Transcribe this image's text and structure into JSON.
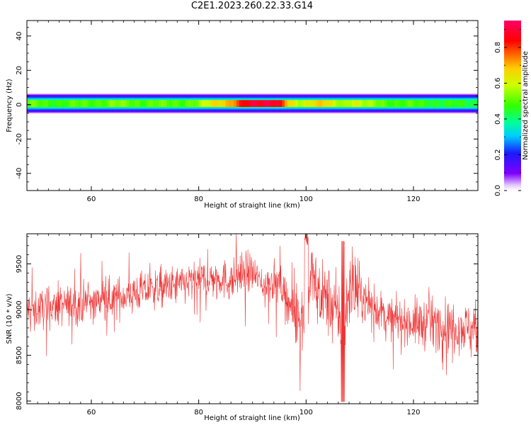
{
  "title": "C2E1.2023.260.22.33.G14",
  "chart_data": [
    {
      "type": "heatmap",
      "xlabel": "Height of straight line (km)",
      "ylabel": "Frequency (Hz)",
      "xlim": [
        48,
        132
      ],
      "ylim": [
        -50,
        49
      ],
      "x_ticks": [
        60,
        80,
        100,
        120
      ],
      "y_ticks": [
        -40,
        -20,
        0,
        20,
        40
      ],
      "colorbar": {
        "label": "Normalized spectral amplitude",
        "range": [
          0.0,
          0.95
        ],
        "ticks": [
          "0.0",
          "0.2",
          "0.4",
          "0.6",
          "0.8"
        ],
        "colormap": "gist_rainbow"
      },
      "band_center_hz": 0.8,
      "band_halfwidth_hz": 5.5,
      "amplitude_profile": {
        "heights_km": [
          48,
          55,
          60,
          65,
          70,
          75,
          80,
          83,
          86,
          90,
          93,
          95,
          97,
          99,
          101,
          103,
          105,
          107,
          109,
          111,
          115,
          120,
          125,
          132
        ],
        "peak_amplitude": [
          0.5,
          0.48,
          0.5,
          0.52,
          0.5,
          0.5,
          0.52,
          0.66,
          0.72,
          0.88,
          0.92,
          0.86,
          0.62,
          0.58,
          0.66,
          0.68,
          0.58,
          0.55,
          0.64,
          0.55,
          0.5,
          0.48,
          0.46,
          0.44
        ]
      }
    },
    {
      "type": "line",
      "xlabel": "Height of straight line (km)",
      "ylabel": "SNR (10 * v/v)",
      "xlim": [
        48,
        132
      ],
      "ylim": [
        7970,
        9830
      ],
      "x_ticks": [
        60,
        80,
        100,
        120
      ],
      "y_ticks": [
        8000,
        8500,
        9000,
        9500
      ],
      "color": "#ee3333",
      "series": [
        {
          "x": [
            48,
            52,
            56,
            60,
            64,
            68,
            72,
            76,
            80,
            84,
            86,
            88,
            90,
            92,
            94,
            96,
            98,
            100,
            101,
            102,
            104,
            106,
            107,
            108,
            110,
            112,
            116,
            120,
            124,
            128,
            132
          ],
          "y": [
            9000,
            9020,
            9050,
            9080,
            9120,
            9180,
            9230,
            9260,
            9320,
            9350,
            9300,
            9420,
            9400,
            9260,
            9320,
            9200,
            8900,
            9000,
            9400,
            9200,
            9100,
            8950,
            8700,
            9250,
            9150,
            9050,
            8900,
            8850,
            8850,
            8820,
            8780
          ]
        }
      ]
    }
  ]
}
